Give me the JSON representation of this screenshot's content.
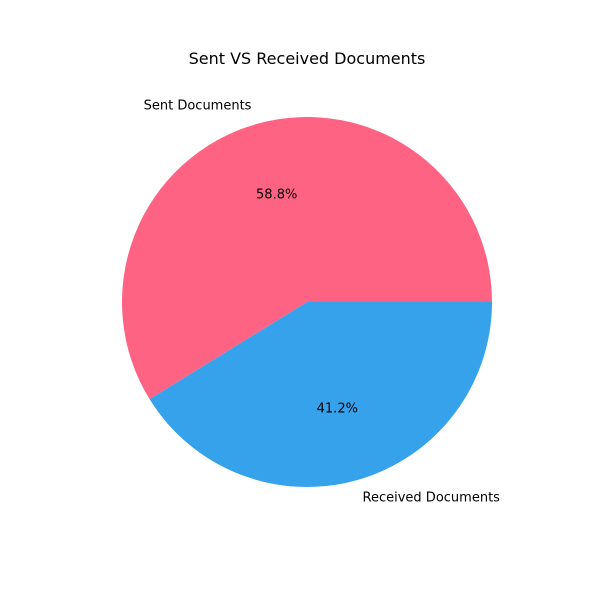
{
  "chart_data": {
    "type": "pie",
    "title": "Sent VS Received Documents",
    "categories": [
      "Sent Documents",
      "Received Documents"
    ],
    "values": [
      58.8,
      41.2
    ],
    "percent_labels": [
      "58.8%",
      "41.2%"
    ],
    "colors": [
      "#ff6384",
      "#36a2eb"
    ],
    "start_angle_deg": 0,
    "direction": "counterclockwise",
    "legend": "none"
  }
}
